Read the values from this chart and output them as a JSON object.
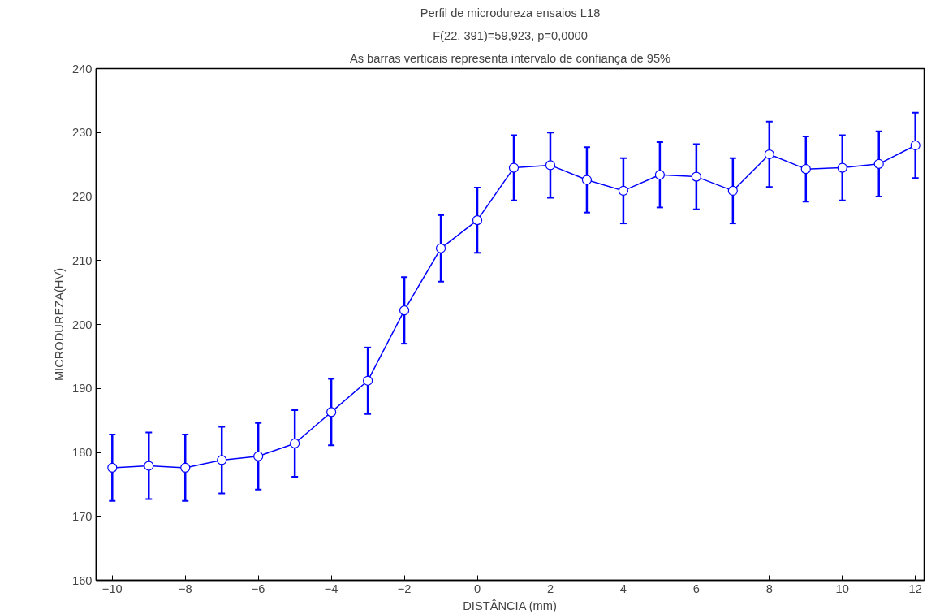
{
  "chart_data": {
    "type": "line",
    "title": "Perfil de microdureza ensaios L18",
    "subtitle": "F(22, 391)=59,923, p=0,0000",
    "annotations": [
      "As barras verticais representa intervalo de confiança de 95%"
    ],
    "xlabel": "DISTÂNCIA (mm)",
    "ylabel": "MICRODUREZA(HV)",
    "x": [
      -10,
      -9,
      -8,
      -7,
      -6,
      -5,
      -4,
      -3,
      -2,
      -1,
      0,
      1,
      2,
      3,
      4,
      5,
      6,
      7,
      8,
      9,
      10,
      11,
      12
    ],
    "series": [
      {
        "color": "#0000ff",
        "values": [
          177.6,
          177.9,
          177.6,
          178.8,
          179.4,
          181.4,
          186.3,
          191.2,
          202.2,
          211.9,
          216.3,
          224.5,
          224.9,
          222.6,
          220.9,
          223.4,
          223.1,
          220.9,
          226.6,
          224.3,
          224.5,
          225.1,
          228.0
        ],
        "errors": [
          5.2,
          5.2,
          5.2,
          5.2,
          5.2,
          5.2,
          5.2,
          5.2,
          5.2,
          5.2,
          5.1,
          5.1,
          5.1,
          5.1,
          5.1,
          5.1,
          5.1,
          5.1,
          5.1,
          5.1,
          5.1,
          5.1,
          5.1
        ]
      }
    ],
    "xlim": [
      -10.44,
      12.24
    ],
    "ylim": [
      160,
      240
    ],
    "xticks": [
      -10,
      -8,
      -6,
      -4,
      -2,
      0,
      2,
      4,
      6,
      8,
      10,
      12
    ],
    "yticks": [
      160,
      170,
      180,
      190,
      200,
      210,
      220,
      230,
      240
    ],
    "grid": false,
    "marker": "circle",
    "line_style": "solid"
  }
}
